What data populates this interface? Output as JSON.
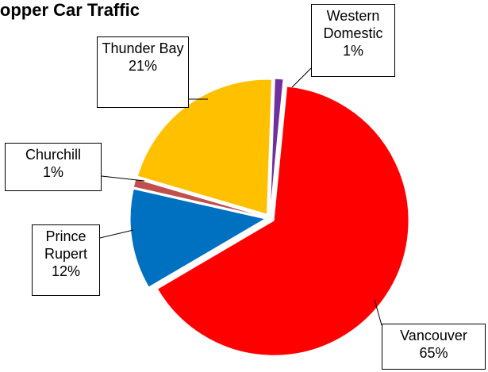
{
  "chart_data": {
    "type": "pie",
    "title": "Hopper Car Traffic",
    "categories": [
      "Western Domestic",
      "Vancouver",
      "Prince Rupert",
      "Churchill",
      "Thunder Bay"
    ],
    "values": [
      1,
      65,
      12,
      1,
      21
    ],
    "value_labels": [
      "1%",
      "65%",
      "12%",
      "1%",
      "21%"
    ],
    "colors": [
      "#7030a0",
      "#ff0000",
      "#0070c0",
      "#c0504d",
      "#ffc000"
    ]
  }
}
